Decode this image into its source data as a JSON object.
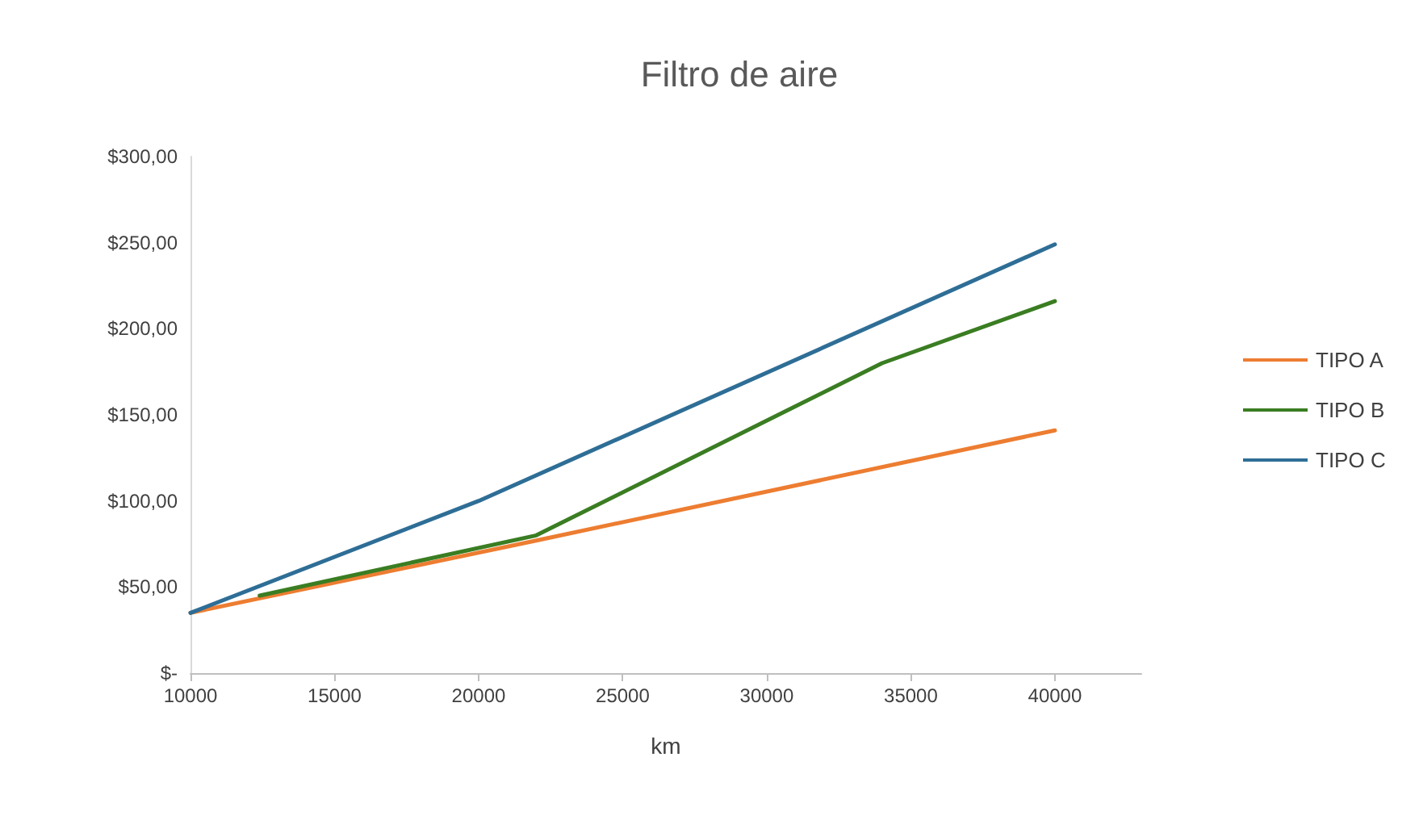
{
  "chart_data": {
    "type": "line",
    "title": "Filtro de aire",
    "xlabel": "km",
    "xlim": [
      10000,
      43000
    ],
    "xticks": [
      10000,
      15000,
      20000,
      25000,
      30000,
      35000,
      40000
    ],
    "ylim": [
      0,
      300
    ],
    "yticks": [
      {
        "value": 0,
        "label": "$-"
      },
      {
        "value": 50,
        "label": "$50,00"
      },
      {
        "value": 100,
        "label": "$100,00"
      },
      {
        "value": 150,
        "label": "$150,00"
      },
      {
        "value": 200,
        "label": "$200,00"
      },
      {
        "value": 250,
        "label": "$250,00"
      },
      {
        "value": 300,
        "label": "$300,00"
      }
    ],
    "grid": false,
    "legend": "right",
    "marker": "none",
    "line_style": "solid",
    "series": [
      {
        "name": "TIPO A",
        "color": "#ed7d31",
        "x": [
          10000,
          22000,
          40000
        ],
        "values": [
          35,
          77,
          141
        ]
      },
      {
        "name": "TIPO B",
        "color": "#3a7d22",
        "x": [
          12400,
          22000,
          34000,
          40000
        ],
        "values": [
          45,
          80,
          180,
          216
        ]
      },
      {
        "name": "TIPO C",
        "color": "#2e6e96",
        "x": [
          10000,
          20000,
          40000
        ],
        "values": [
          35,
          100,
          249
        ]
      }
    ]
  }
}
